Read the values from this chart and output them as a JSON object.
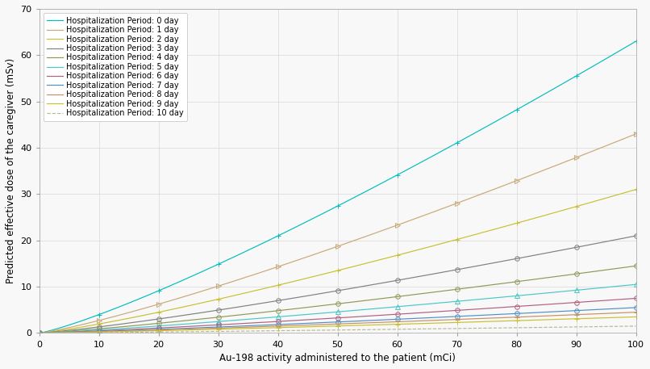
{
  "title": "",
  "xlabel": "Au-198 activity administered to the patient (mCi)",
  "ylabel": "Predicted effective dose of the caregiver (mSv)",
  "xlim": [
    0,
    100
  ],
  "ylim": [
    0,
    70
  ],
  "xticks": [
    0,
    10,
    20,
    30,
    40,
    50,
    60,
    70,
    80,
    90,
    100
  ],
  "yticks": [
    0,
    10,
    20,
    30,
    40,
    50,
    60,
    70
  ],
  "series": [
    {
      "label": "Hospitalization Period: 0 day",
      "color": "#00BEBE",
      "linestyle": "-",
      "marker": "+",
      "markersize": 5,
      "val_at_100": 63.0
    },
    {
      "label": "Hospitalization Period: 1 day",
      "color": "#C8A878",
      "linestyle": "-",
      "marker": ">",
      "markersize": 4,
      "val_at_100": 43.0
    },
    {
      "label": "Hospitalization Period: 2 day",
      "color": "#C8C030",
      "linestyle": "-",
      "marker": "+",
      "markersize": 5,
      "val_at_100": 31.0
    },
    {
      "label": "Hospitalization Period: 3 day",
      "color": "#808080",
      "linestyle": "-",
      "marker": "o",
      "markersize": 4,
      "val_at_100": 21.0
    },
    {
      "label": "Hospitalization Period: 4 day",
      "color": "#909858",
      "linestyle": "-",
      "marker": "o",
      "markersize": 4,
      "val_at_100": 14.5
    },
    {
      "label": "Hospitalization Period: 5 day",
      "color": "#48C8C8",
      "linestyle": "-",
      "marker": "^",
      "markersize": 4,
      "val_at_100": 10.5
    },
    {
      "label": "Hospitalization Period: 6 day",
      "color": "#B06080",
      "linestyle": "-",
      "marker": "o",
      "markersize": 4,
      "val_at_100": 7.5
    },
    {
      "label": "Hospitalization Period: 7 day",
      "color": "#5090C8",
      "linestyle": "-",
      "marker": "o",
      "markersize": 4,
      "val_at_100": 5.5
    },
    {
      "label": "Hospitalization Period: 8 day",
      "color": "#C89060",
      "linestyle": "-",
      "marker": "+",
      "markersize": 5,
      "val_at_100": 4.5
    },
    {
      "label": "Hospitalization Period: 9 day",
      "color": "#C8C030",
      "linestyle": "-",
      "marker": "+",
      "markersize": 5,
      "val_at_100": 3.5
    },
    {
      "label": "Hospitalization Period: 10 day",
      "color": "#B8B898",
      "linestyle": "--",
      "marker": "none",
      "markersize": 0,
      "val_at_100": 1.5
    }
  ],
  "power": 1.2,
  "background_color": "#f8f8f8",
  "grid_color": "#d8d8d8",
  "legend_fontsize": 7.0,
  "axis_fontsize": 8.5,
  "tick_fontsize": 8.0
}
